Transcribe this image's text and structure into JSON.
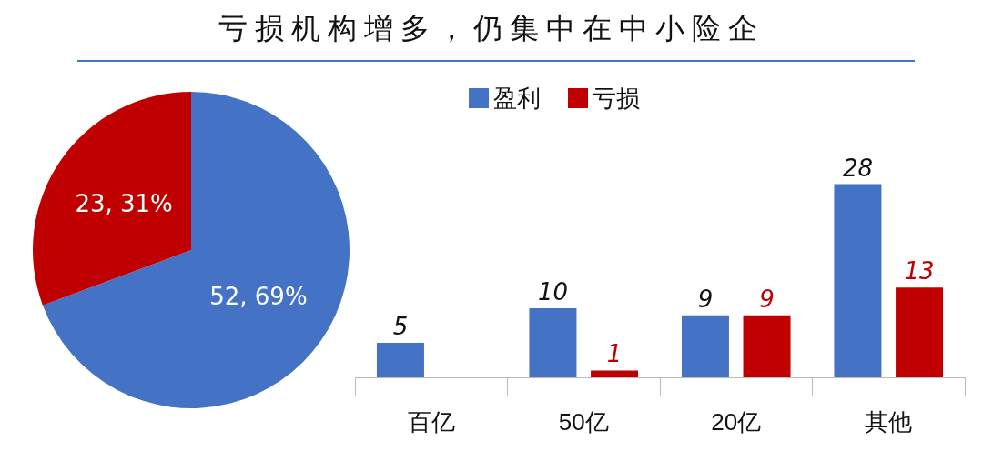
{
  "chart_data": [
    {
      "type": "pie",
      "title": "亏损机构增多，仍集中在中小险企",
      "categories": [
        null,
        null
      ],
      "values": [
        52,
        23
      ],
      "colors": [
        "#4472c4",
        "#c00000"
      ],
      "value_labels": [
        "52, 69%",
        "23, 31%"
      ]
    },
    {
      "type": "bar",
      "categories": [
        "百亿",
        "50亿",
        "20亿",
        "其他"
      ],
      "series": [
        {
          "name": "盈利",
          "color": "#4472c4",
          "values": [
            5,
            10,
            9,
            28
          ]
        },
        {
          "name": "亏损",
          "color": "#c00000",
          "values": [
            null,
            1,
            9,
            13
          ]
        }
      ],
      "data_labels": true,
      "legend": "top"
    }
  ]
}
